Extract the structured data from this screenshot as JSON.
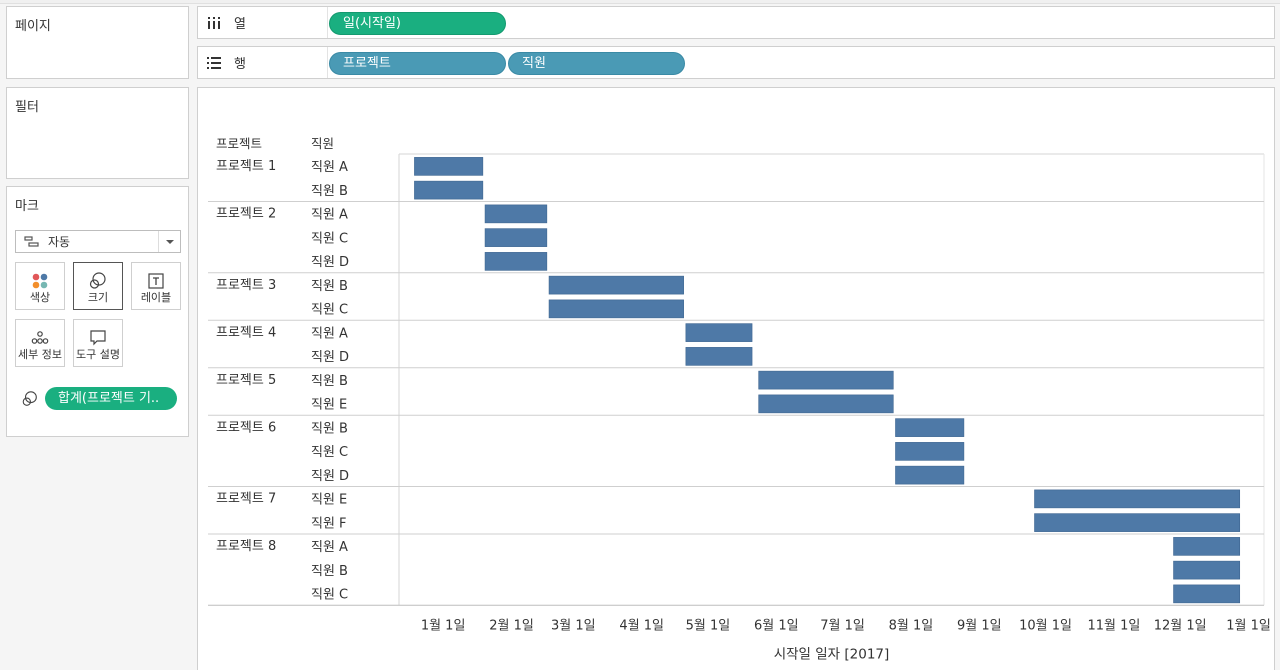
{
  "panels": {
    "pages": "페이지",
    "filters": "필터",
    "marks": "마크"
  },
  "shelves": {
    "columns": {
      "label": "열",
      "pills": [
        "일(시작일)"
      ]
    },
    "rows": {
      "label": "행",
      "pills": [
        "프로젝트",
        "직원"
      ]
    }
  },
  "marks": {
    "type": "자동",
    "buttons": {
      "color": "색상",
      "size": "크기",
      "label": "레이블",
      "detail": "세부 정보",
      "tooltip": "도구 설명"
    },
    "size_field": "합계(프로젝트 기.."
  },
  "colors": {
    "bar": "#4e79a7",
    "green_pill": "#1aaf80",
    "blue_pill": "#4a9ab5"
  },
  "chart_data": {
    "type": "gantt",
    "title": "",
    "row_headers": [
      "프로젝트",
      "직원"
    ],
    "xlabel": "시작일 일자 [2017]",
    "x_ticks": [
      "1월 1일",
      "2월 1일",
      "3월 1일",
      "4월 1일",
      "5월 1일",
      "6월 1일",
      "7월 1일",
      "8월 1일",
      "9월 1일",
      "10월 1일",
      "11월 1일",
      "12월 1일",
      "1월 1일"
    ],
    "x_tick_dates": [
      "2017-01-01",
      "2017-02-01",
      "2017-03-01",
      "2017-04-01",
      "2017-05-01",
      "2017-06-01",
      "2017-07-01",
      "2017-08-01",
      "2017-09-01",
      "2017-10-01",
      "2017-11-01",
      "2017-12-01",
      "2018-01-01"
    ],
    "xlim": [
      "2016-12-12",
      "2018-01-08"
    ],
    "projects": [
      {
        "name": "프로젝트 1",
        "rows": [
          {
            "employee": "직원 A",
            "start": "2016-12-19",
            "end": "2017-01-19"
          },
          {
            "employee": "직원 B",
            "start": "2016-12-19",
            "end": "2017-01-19"
          }
        ]
      },
      {
        "name": "프로젝트 2",
        "rows": [
          {
            "employee": "직원 A",
            "start": "2017-01-20",
            "end": "2017-02-17"
          },
          {
            "employee": "직원 C",
            "start": "2017-01-20",
            "end": "2017-02-17"
          },
          {
            "employee": "직원 D",
            "start": "2017-01-20",
            "end": "2017-02-17"
          }
        ]
      },
      {
        "name": "프로젝트 3",
        "rows": [
          {
            "employee": "직원 B",
            "start": "2017-02-18",
            "end": "2017-04-20"
          },
          {
            "employee": "직원 C",
            "start": "2017-02-18",
            "end": "2017-04-20"
          }
        ]
      },
      {
        "name": "프로젝트 4",
        "rows": [
          {
            "employee": "직원 A",
            "start": "2017-04-21",
            "end": "2017-05-21"
          },
          {
            "employee": "직원 D",
            "start": "2017-04-21",
            "end": "2017-05-21"
          }
        ]
      },
      {
        "name": "프로젝트 5",
        "rows": [
          {
            "employee": "직원 B",
            "start": "2017-05-24",
            "end": "2017-07-24"
          },
          {
            "employee": "직원 E",
            "start": "2017-05-24",
            "end": "2017-07-24"
          }
        ]
      },
      {
        "name": "프로젝트 6",
        "rows": [
          {
            "employee": "직원 B",
            "start": "2017-07-25",
            "end": "2017-08-25"
          },
          {
            "employee": "직원 C",
            "start": "2017-07-25",
            "end": "2017-08-25"
          },
          {
            "employee": "직원 D",
            "start": "2017-07-25",
            "end": "2017-08-25"
          }
        ]
      },
      {
        "name": "프로젝트 7",
        "rows": [
          {
            "employee": "직원 E",
            "start": "2017-09-26",
            "end": "2017-12-28"
          },
          {
            "employee": "직원 F",
            "start": "2017-09-26",
            "end": "2017-12-28"
          }
        ]
      },
      {
        "name": "프로젝트 8",
        "rows": [
          {
            "employee": "직원 A",
            "start": "2017-11-28",
            "end": "2017-12-28"
          },
          {
            "employee": "직원 B",
            "start": "2017-11-28",
            "end": "2017-12-28"
          },
          {
            "employee": "직원 C",
            "start": "2017-11-28",
            "end": "2017-12-28"
          }
        ]
      }
    ]
  }
}
